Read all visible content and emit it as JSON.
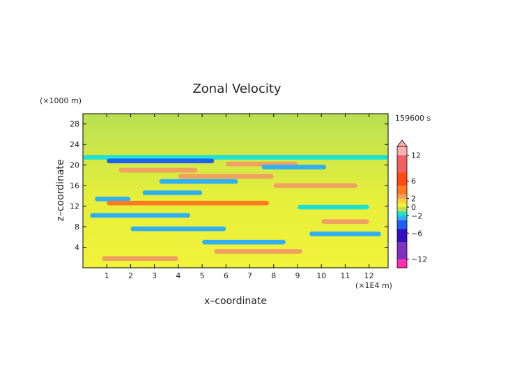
{
  "chart_data": {
    "type": "heatmap",
    "title": "Zonal Velocity",
    "time_label": "159600 s",
    "xlabel": "x–coordinate",
    "ylabel": "z–coordinate",
    "x_unit": "(×1E4 m)",
    "y_unit": "(×1000 m)",
    "x_ticks": [
      "1",
      "2",
      "3",
      "4",
      "5",
      "6",
      "7",
      "8",
      "9",
      "10",
      "11",
      "12"
    ],
    "y_ticks": [
      "4",
      "8",
      "12",
      "16",
      "20",
      "24",
      "28"
    ],
    "xlim": [
      0,
      12.8
    ],
    "ylim": [
      0,
      30
    ],
    "colorbar_labels": [
      "12",
      "6",
      "2",
      "0",
      "−2",
      "−6",
      "−12"
    ],
    "colorbar_values": [
      12,
      6,
      2,
      0,
      -2,
      -6,
      -12
    ],
    "colorbar_range": [
      -14,
      14
    ],
    "bands": [
      {
        "z": 21.5,
        "value": -1.6,
        "x_from": 0,
        "x_to": 12.8
      },
      {
        "z": 20.8,
        "value": -3.2,
        "x_from": 1.0,
        "x_to": 5.5
      },
      {
        "z": 20.2,
        "value": 2.6,
        "x_from": 6.0,
        "x_to": 9.0
      },
      {
        "z": 19.6,
        "value": -2.8,
        "x_from": 7.5,
        "x_to": 10.2
      },
      {
        "z": 19.0,
        "value": 2.4,
        "x_from": 1.5,
        "x_to": 4.8
      },
      {
        "z": 17.8,
        "value": 2.6,
        "x_from": 4.0,
        "x_to": 8.0
      },
      {
        "z": 16.8,
        "value": -3.0,
        "x_from": 3.2,
        "x_to": 6.5
      },
      {
        "z": 16.0,
        "value": 2.4,
        "x_from": 8.0,
        "x_to": 11.5
      },
      {
        "z": 14.6,
        "value": -2.4,
        "x_from": 2.5,
        "x_to": 5.0
      },
      {
        "z": 13.4,
        "value": -2.6,
        "x_from": 0.5,
        "x_to": 2.0
      },
      {
        "z": 12.6,
        "value": 3.4,
        "x_from": 1.0,
        "x_to": 7.8
      },
      {
        "z": 11.8,
        "value": -2.0,
        "x_from": 9.0,
        "x_to": 12.0
      },
      {
        "z": 10.2,
        "value": -2.4,
        "x_from": 0.3,
        "x_to": 4.5
      },
      {
        "z": 9.0,
        "value": 2.4,
        "x_from": 10.0,
        "x_to": 12.0
      },
      {
        "z": 7.6,
        "value": -2.2,
        "x_from": 2.0,
        "x_to": 6.0
      },
      {
        "z": 6.6,
        "value": -2.6,
        "x_from": 9.5,
        "x_to": 12.5
      },
      {
        "z": 5.0,
        "value": -3.0,
        "x_from": 5.0,
        "x_to": 8.5
      },
      {
        "z": 3.2,
        "value": 2.6,
        "x_from": 5.5,
        "x_to": 9.2
      },
      {
        "z": 1.8,
        "value": 2.2,
        "x_from": 0.8,
        "x_to": 4.0
      }
    ]
  }
}
